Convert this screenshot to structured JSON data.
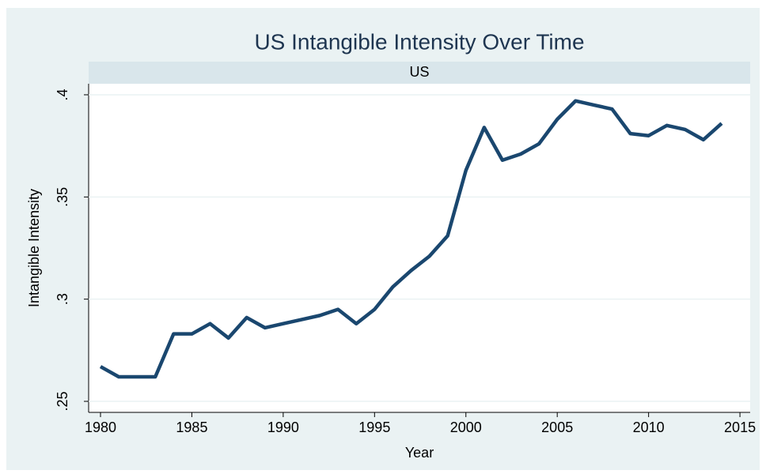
{
  "chart_data": {
    "type": "line",
    "title": "US Intangible Intensity Over Time",
    "subtitle": "US",
    "x_label": "Year",
    "y_label": "Intangible Intensity",
    "x": [
      1980,
      1981,
      1982,
      1983,
      1984,
      1985,
      1986,
      1987,
      1988,
      1989,
      1990,
      1991,
      1992,
      1993,
      1994,
      1995,
      1996,
      1997,
      1998,
      1999,
      2000,
      2001,
      2002,
      2003,
      2004,
      2005,
      2006,
      2007,
      2008,
      2009,
      2010,
      2011,
      2012,
      2013,
      2014
    ],
    "series": [
      {
        "name": "US",
        "color": "#1a476f",
        "values": [
          0.267,
          0.262,
          0.262,
          0.262,
          0.283,
          0.283,
          0.288,
          0.281,
          0.291,
          0.286,
          0.288,
          0.29,
          0.292,
          0.295,
          0.288,
          0.295,
          0.306,
          0.314,
          0.321,
          0.331,
          0.363,
          0.384,
          0.368,
          0.371,
          0.376,
          0.388,
          0.397,
          0.395,
          0.393,
          0.381,
          0.38,
          0.385,
          0.383,
          0.378,
          0.386
        ]
      }
    ],
    "xlim": [
      1979.35,
      2015.56
    ],
    "xticks": [
      1980,
      1985,
      1990,
      1995,
      2000,
      2005,
      2010,
      2015
    ],
    "ylim": [
      0.2446,
      0.4054
    ],
    "yticks": [
      {
        "value": 0.25,
        "label": ".25"
      },
      {
        "value": 0.3,
        "label": ".3"
      },
      {
        "value": 0.35,
        "label": ".35"
      },
      {
        "value": 0.4,
        "label": ".4"
      }
    ],
    "grid": true
  }
}
